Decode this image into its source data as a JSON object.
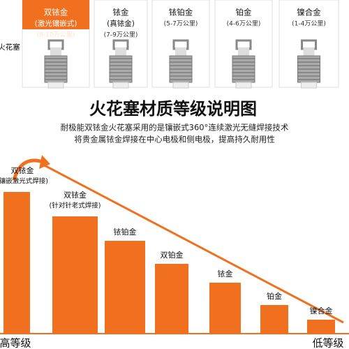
{
  "top_cards": [
    {
      "name": "火花塞"
    },
    {
      "name": "双铱金",
      "type": "(激光镶嵌式)",
      "life": "(8-10万公里)"
    },
    {
      "name": "铱金",
      "type": "(真铱金)",
      "life": "(7-9万公里)"
    },
    {
      "name": "铱铂金",
      "life": "(5-7万公里)"
    },
    {
      "name": "铂金",
      "life": "(4-6万公里)"
    },
    {
      "name": "镍合金",
      "life": "(1-4万公里)"
    }
  ],
  "title": "火花塞材质等级说明图",
  "description": [
    "耐极能双铱金火花塞采用的是镶嵌式360°连续激光无缝焊接技术",
    "将贵金属铱金焊接在中心电极和侧电极，提高持久耐用性"
  ],
  "grades": [
    {
      "name": "双铱金",
      "note": "(镶嵌激光式焊接)"
    },
    {
      "name": "双铱金",
      "note": "(针对针老式焊接)"
    },
    {
      "name": "铱铂金"
    },
    {
      "name": "双铂金"
    },
    {
      "name": "铱金"
    },
    {
      "name": "铂金"
    },
    {
      "name": "镍合金"
    }
  ],
  "high_label": "高等级",
  "low_label": "低等级"
}
